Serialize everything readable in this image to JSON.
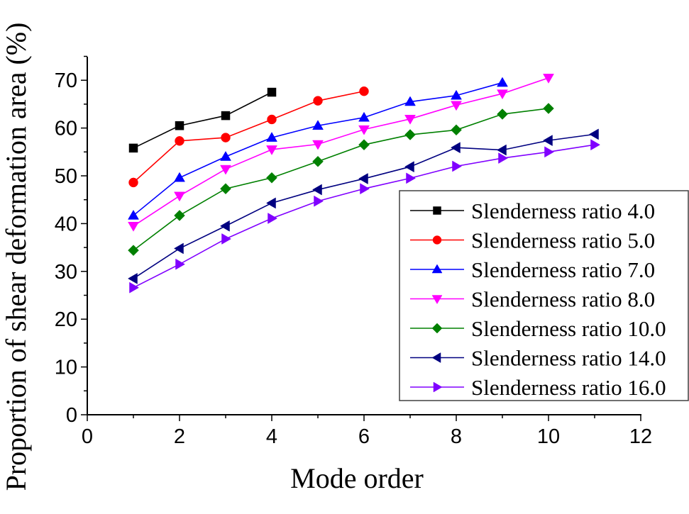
{
  "chart_data": {
    "type": "line",
    "title": "",
    "xlabel": "Mode order",
    "ylabel": "Proportion of shear deformation area (%)",
    "xlim": [
      0,
      12
    ],
    "ylim": [
      0,
      75
    ],
    "xticks": [
      0,
      2,
      4,
      6,
      8,
      10,
      12
    ],
    "yticks": [
      0,
      10,
      20,
      30,
      40,
      50,
      60,
      70
    ],
    "grid": false,
    "legend_position": "lower right (inside plot)",
    "series": [
      {
        "name": "Slenderness ratio 4.0",
        "color": "#000000",
        "marker": "square",
        "x": [
          1,
          2,
          3,
          4
        ],
        "values": [
          55.8,
          60.5,
          62.6,
          67.5
        ]
      },
      {
        "name": "Slenderness ratio 5.0",
        "color": "#ff0000",
        "marker": "circle",
        "x": [
          1,
          2,
          3,
          4,
          5,
          6
        ],
        "values": [
          48.6,
          57.3,
          58.0,
          61.8,
          65.7,
          67.7
        ]
      },
      {
        "name": "Slenderness ratio 7.0",
        "color": "#0000ff",
        "marker": "triangle-up",
        "x": [
          1,
          2,
          3,
          4,
          5,
          6,
          7,
          8,
          9
        ],
        "values": [
          41.7,
          49.6,
          54.0,
          58.0,
          60.5,
          62.2,
          65.5,
          66.8,
          69.5
        ]
      },
      {
        "name": "Slenderness ratio 8.0",
        "color": "#ff00ff",
        "marker": "triangle-down",
        "x": [
          1,
          2,
          3,
          4,
          5,
          6,
          7,
          8,
          9,
          10
        ],
        "values": [
          39.5,
          45.8,
          51.4,
          55.5,
          56.6,
          59.7,
          61.9,
          64.8,
          67.2,
          70.5
        ]
      },
      {
        "name": "Slenderness ratio 10.0",
        "color": "#008000",
        "marker": "diamond",
        "x": [
          1,
          2,
          3,
          4,
          5,
          6,
          7,
          8,
          9,
          10
        ],
        "values": [
          34.4,
          41.7,
          47.3,
          49.6,
          53.0,
          56.5,
          58.6,
          59.6,
          62.9,
          64.1
        ]
      },
      {
        "name": "Slenderness ratio 14.0",
        "color": "#000080",
        "marker": "triangle-left",
        "x": [
          1,
          2,
          3,
          4,
          5,
          6,
          7,
          8,
          9,
          10,
          11
        ],
        "values": [
          28.5,
          34.8,
          39.5,
          44.3,
          47.1,
          49.4,
          51.9,
          55.9,
          55.4,
          57.4,
          58.7
        ]
      },
      {
        "name": "Slenderness ratio 16.0",
        "color": "#8000ff",
        "marker": "triangle-right",
        "x": [
          1,
          2,
          3,
          4,
          5,
          6,
          7,
          8,
          9,
          10,
          11
        ],
        "values": [
          26.6,
          31.5,
          36.8,
          41.1,
          44.7,
          47.3,
          49.5,
          52.0,
          53.7,
          55.0,
          56.5
        ]
      }
    ]
  }
}
